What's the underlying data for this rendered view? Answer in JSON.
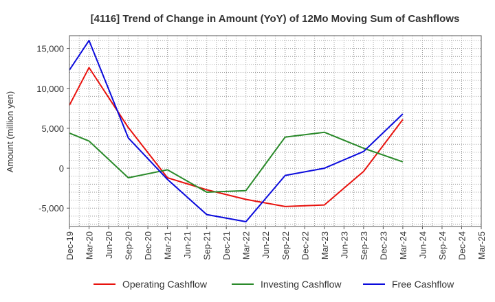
{
  "chart_data": {
    "type": "line",
    "title": "[4116]  Trend of Change in Amount (YoY) of 12Mo Moving Sum of Cashflows",
    "xlabel": "",
    "ylabel": "Amount (million yen)",
    "ylim": [
      -7300,
      16600
    ],
    "yticks": [
      -5000,
      0,
      5000,
      10000,
      15000
    ],
    "ytick_labels": [
      "-5,000",
      "0",
      "5,000",
      "10,000",
      "15,000"
    ],
    "categories": [
      "Dec-19",
      "Mar-20",
      "Jun-20",
      "Sep-20",
      "Dec-20",
      "Mar-21",
      "Jun-21",
      "Sep-21",
      "Dec-21",
      "Mar-22",
      "Jun-22",
      "Sep-22",
      "Dec-22",
      "Mar-23",
      "Jun-23",
      "Sep-23",
      "Dec-23",
      "Mar-24",
      "Jun-24",
      "Sep-24",
      "Dec-24",
      "Mar-25"
    ],
    "grid": true,
    "legend_position": "bottom",
    "series": [
      {
        "name": "Operating Cashflow",
        "color": "#e8120d",
        "values": [
          7900,
          12600,
          null,
          5100,
          null,
          -1200,
          null,
          -2700,
          null,
          -3900,
          null,
          -4800,
          null,
          -4600,
          null,
          -400,
          null,
          6100,
          null,
          null,
          null,
          null
        ]
      },
      {
        "name": "Investing Cashflow",
        "color": "#2a8a2a",
        "values": [
          4400,
          3400,
          null,
          -1200,
          null,
          -200,
          null,
          -3000,
          null,
          -2800,
          null,
          3900,
          null,
          4500,
          null,
          2500,
          null,
          800,
          null,
          null,
          null,
          null
        ]
      },
      {
        "name": "Free Cashflow",
        "color": "#0a0adc",
        "values": [
          12300,
          16000,
          null,
          3800,
          null,
          -1400,
          null,
          -5800,
          null,
          -6700,
          null,
          -900,
          null,
          0,
          null,
          2100,
          null,
          6800,
          null,
          null,
          null,
          null
        ]
      }
    ]
  }
}
